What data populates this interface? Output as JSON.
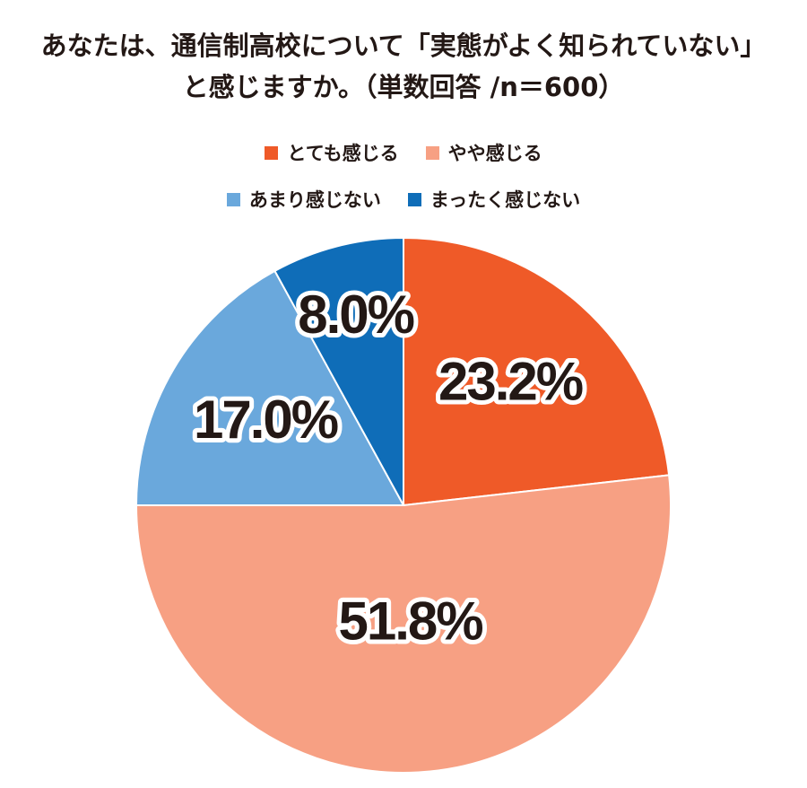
{
  "chart_data": {
    "type": "pie",
    "title": "あなたは、通信制高校について「実態がよく知られていない」と感じますか。（単数回答 /n＝600）",
    "categories": [
      "とても感じる",
      "やや感じる",
      "あまり感じない",
      "まったく感じない"
    ],
    "values": [
      23.2,
      51.8,
      17.0,
      8.0
    ],
    "value_labels": [
      "23.2%",
      "51.8%",
      "17.0%",
      "8.0%"
    ],
    "colors": [
      "#ef5a28",
      "#f7a083",
      "#6aa8dc",
      "#0f6db8"
    ],
    "legend": "top"
  }
}
